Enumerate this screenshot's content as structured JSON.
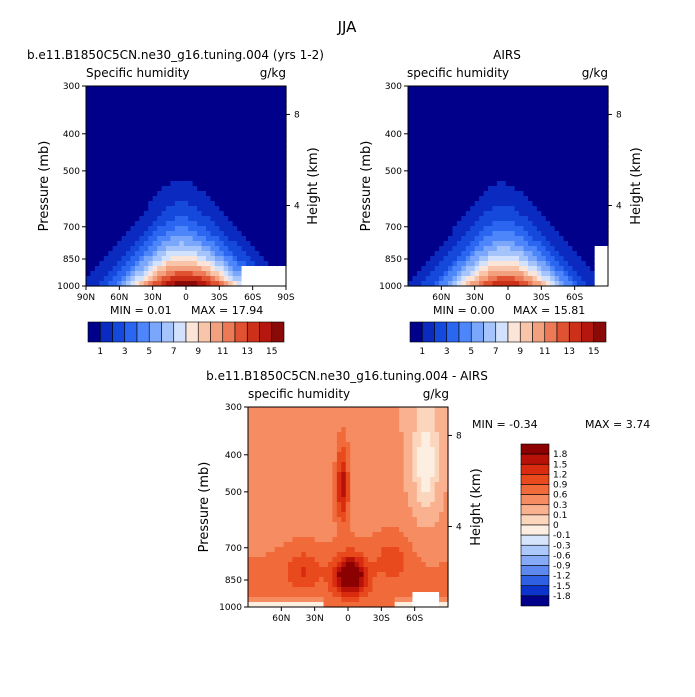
{
  "chart_data": {
    "type": "heatmap",
    "title": "JJA",
    "panels": [
      {
        "id": "model",
        "title": "b.e11.B1850C5CN.ne30_g16.tuning.004 (yrs 1-2)",
        "left_label": "Specific humidity",
        "units": "g/kg",
        "ylabel": "Pressure (mb)",
        "y2label": "Height (km)",
        "pressure_ticks": [
          "300",
          "400",
          "500",
          "700",
          "850",
          "1000"
        ],
        "height_ticks": [
          "8",
          "4"
        ],
        "x_ticks": [
          "90N",
          "60N",
          "30N",
          "0",
          "30S",
          "60S",
          "90S"
        ],
        "min_text": "MIN = 0.01",
        "max_text": "MAX = 17.94",
        "xlim": [
          90,
          -90
        ],
        "ylim": [
          1000,
          300
        ],
        "field": {
          "peak": 17.9,
          "center_lat": 5,
          "scale": 0.72,
          "width": 28,
          "shoulder": 0.16,
          "blank_from_lat": -50,
          "blank_below_mb": 900
        }
      },
      {
        "id": "obs",
        "title": "AIRS",
        "left_label": "specific humidity",
        "units": "g/kg",
        "ylabel": "Pressure (mb)",
        "y2label": "Height (km)",
        "pressure_ticks": [
          "300",
          "400",
          "500",
          "700",
          "850",
          "1000"
        ],
        "height_ticks": [
          "8",
          "4"
        ],
        "x_ticks": [
          "60N",
          "30N",
          "0",
          "30S",
          "60S"
        ],
        "min_text": "MIN = 0.00",
        "max_text": "MAX = 15.81",
        "xlim": [
          90,
          -90
        ],
        "ylim": [
          1000,
          300
        ],
        "field": {
          "peak": 15.8,
          "center_lat": 5,
          "scale": 0.66,
          "width": 28,
          "shoulder": 0.1,
          "blank_from_lat": -76,
          "blank_below_mb": 780
        }
      }
    ],
    "colorbar_top": {
      "labels": [
        "1",
        "3",
        "5",
        "7",
        "9",
        "11",
        "13",
        "15"
      ],
      "colors": [
        "#00008b",
        "#0a2ac0",
        "#1449dc",
        "#2a66f0",
        "#4d86fa",
        "#7aa6fb",
        "#a5c4fc",
        "#d2e1fd",
        "#fbe5d8",
        "#f8c4aa",
        "#f3a07e",
        "#ec7a56",
        "#e05232",
        "#cc3019",
        "#b3170e",
        "#8a0a08"
      ]
    },
    "difference": {
      "title": "b.e11.B1850C5CN.ne30_g16.tuning.004 - AIRS",
      "left_label": "specific humidity",
      "units": "g/kg",
      "ylabel": "Pressure (mb)",
      "y2label": "Height (km)",
      "min_text": "MIN = -0.34",
      "max_text": "MAX = 3.74",
      "x_ticks": [
        "60N",
        "30N",
        "0",
        "30S",
        "60S"
      ],
      "pressure_ticks": [
        "300",
        "400",
        "500",
        "700",
        "850",
        "1000"
      ],
      "height_ticks": [
        "8",
        "4"
      ],
      "levels": [
        "1.8",
        "1.5",
        "1.2",
        "0.9",
        "0.6",
        "0.3",
        "0.1",
        "0",
        "-0.1",
        "-0.3",
        "-0.6",
        "-0.9",
        "-1.2",
        "-1.5",
        "-1.8"
      ],
      "colors": [
        "#8b0000",
        "#b81208",
        "#d92b0f",
        "#e84a1e",
        "#f06a3a",
        "#f68d62",
        "#f9b18f",
        "#fcd5bd",
        "#fdeee2",
        "#d6e4fc",
        "#adc8fa",
        "#86aaf6",
        "#5c88ef",
        "#2f5fe3",
        "#0c34cc",
        "#00008b"
      ],
      "xlim": [
        90,
        -90
      ],
      "ylim": [
        1000,
        300
      ]
    }
  }
}
